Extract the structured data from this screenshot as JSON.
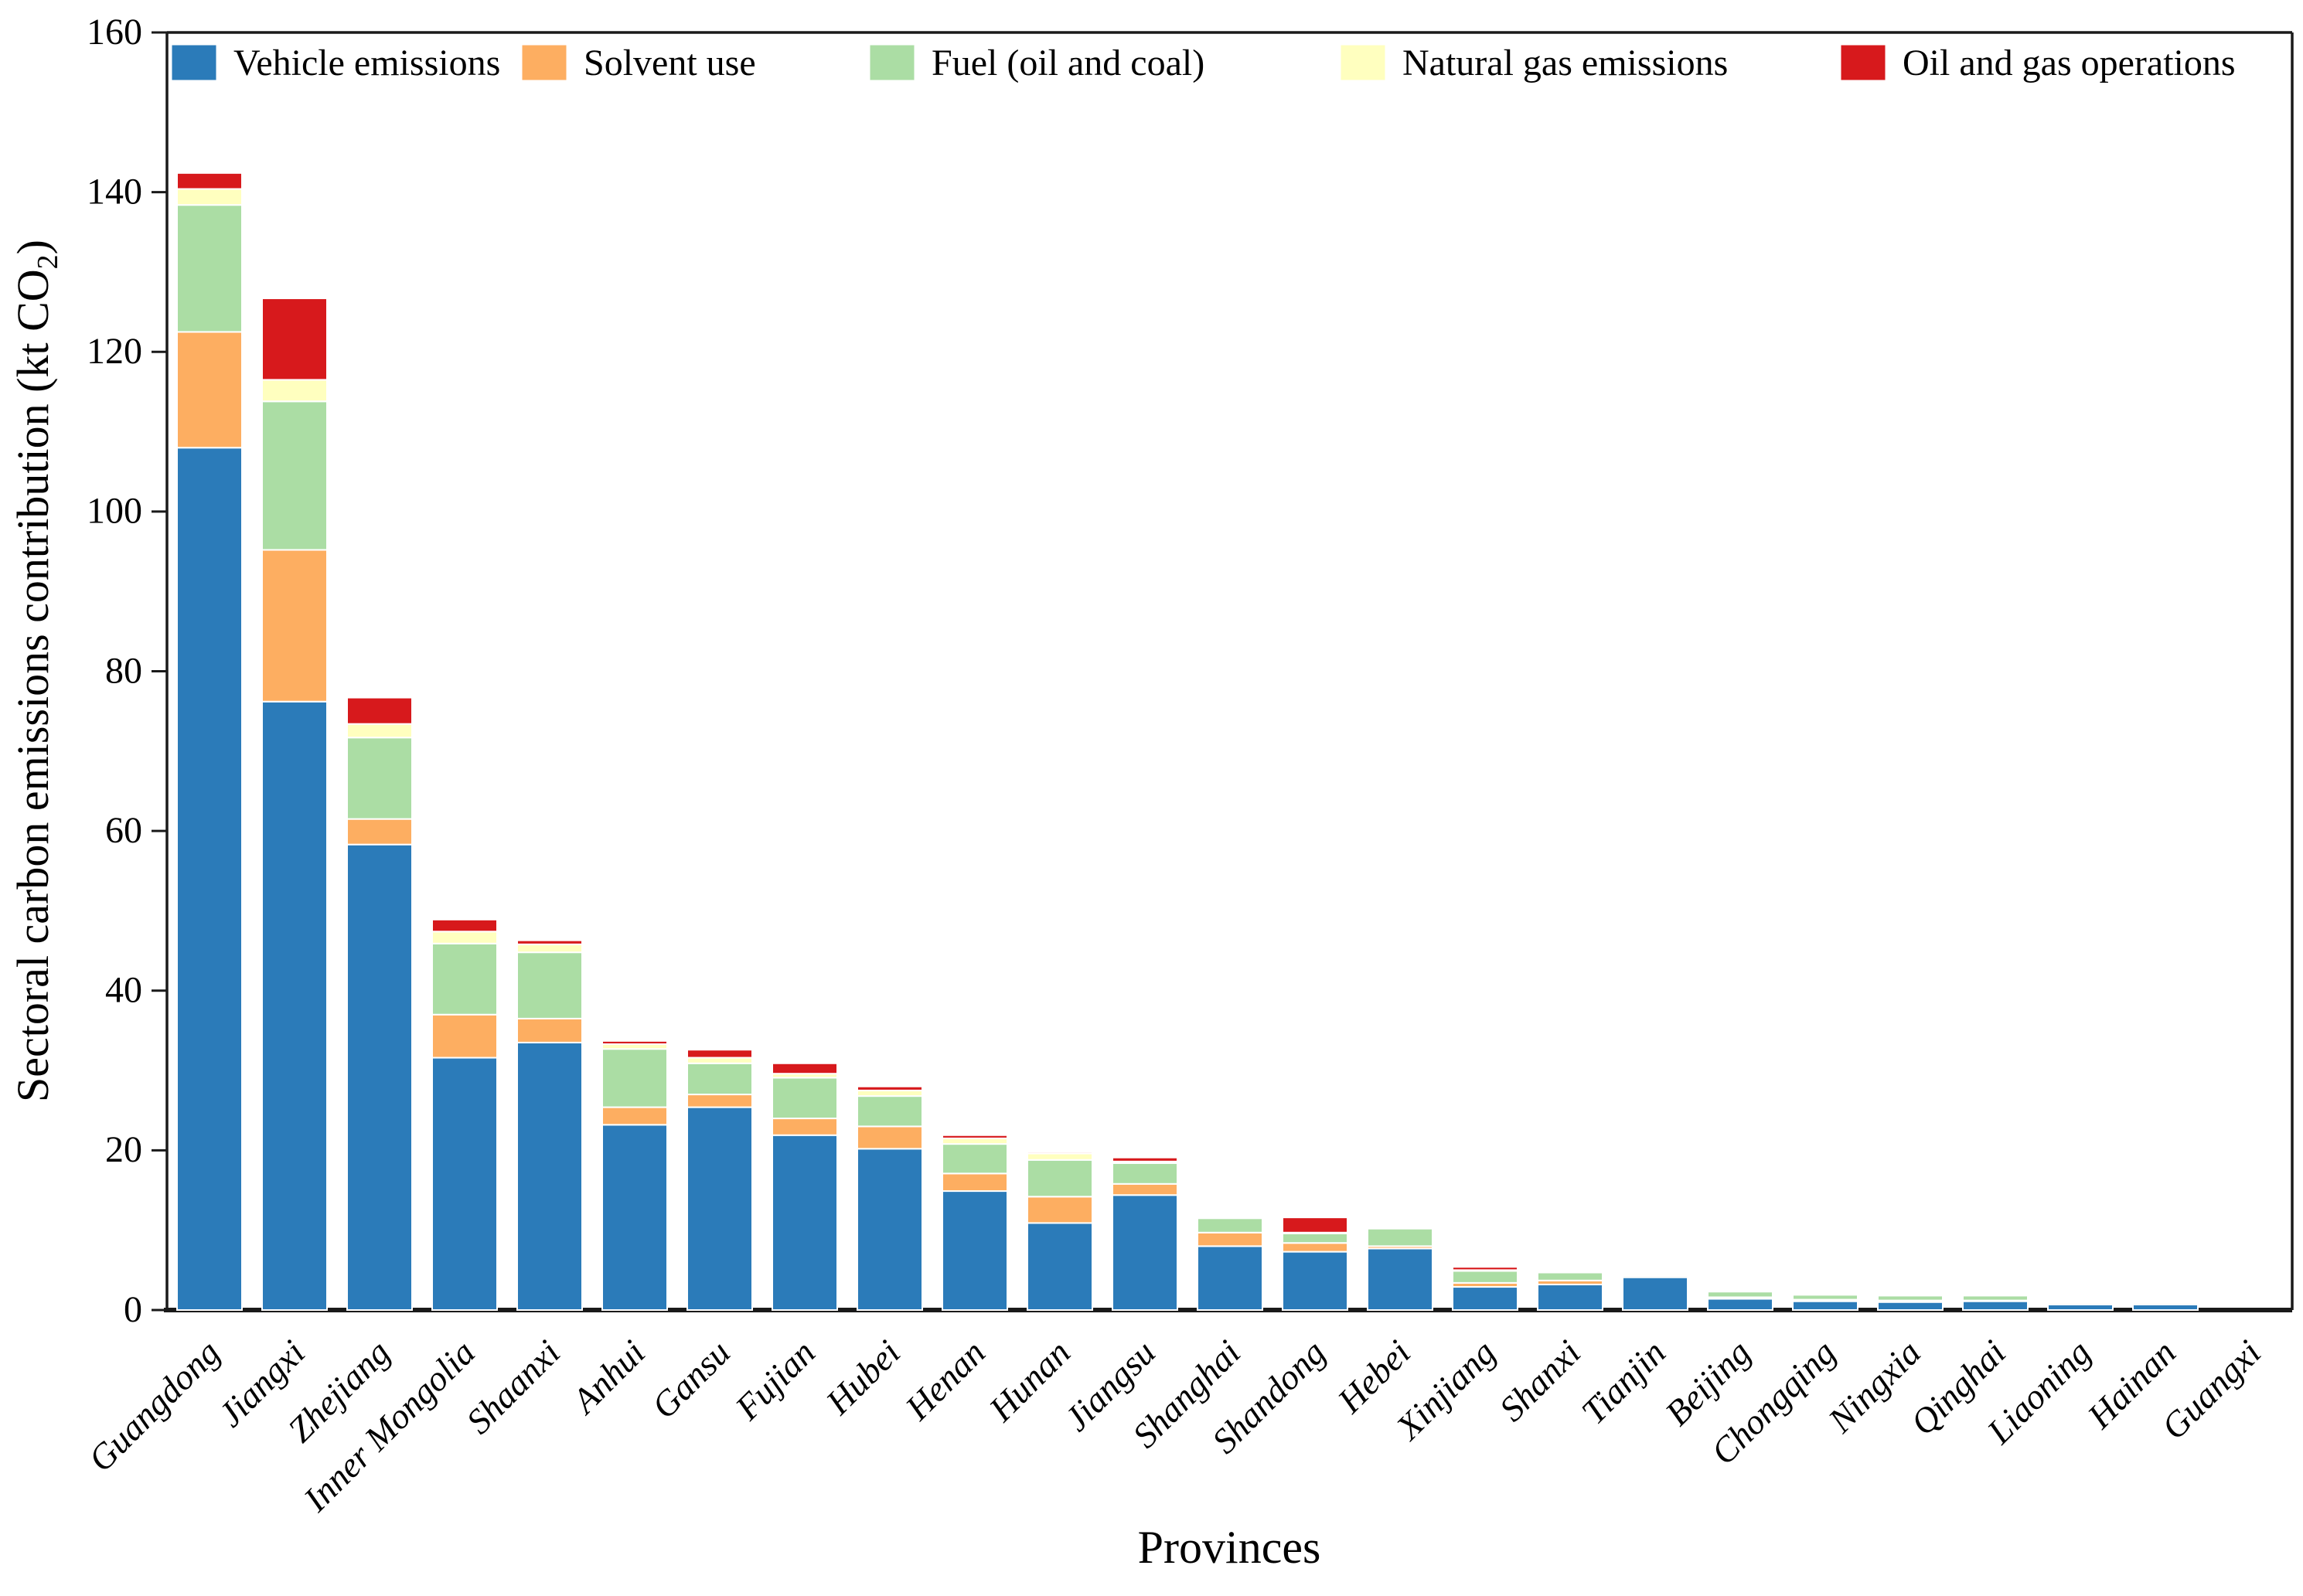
{
  "figure": {
    "x_axis_title": "Provinces",
    "y_axis_title_parts": {
      "main": "Sectoral carbon emissions contribution (kt CO",
      "sub": "2",
      "end": ")"
    }
  },
  "colors": {
    "vehicle_blue": "#2b7bb9",
    "solvent_orange": "#fdae61",
    "fuel_green": "#abdda4",
    "natural_gas_yellow": "#ffffbf",
    "oil_gas_red": "#d7191c",
    "axis_line": "#1a1a1a",
    "segment_edge": "#ffffff"
  },
  "chart_data": {
    "type": "bar",
    "stacked": true,
    "title": "",
    "xlabel": "Provinces",
    "ylabel": "Sectoral carbon emissions contribution (kt CO2)",
    "ylim": [
      0,
      160
    ],
    "yticks": [
      0,
      20,
      40,
      60,
      80,
      100,
      120,
      140,
      160
    ],
    "grid": false,
    "legend_position": "top-inside-row",
    "categories": [
      "Guangdong",
      "Jiangxi",
      "Zhejiang",
      "Inner Mongolia",
      "Shaanxi",
      "Anhui",
      "Gansu",
      "Fujian",
      "Hubei",
      "Henan",
      "Hunan",
      "Jiangsu",
      "Shanghai",
      "Shandong",
      "Hebei",
      "Xinjiang",
      "Shanxi",
      "Tianjin",
      "Beijing",
      "Chongqing",
      "Ningxia",
      "Qinghai",
      "Liaoning",
      "Hainan",
      "Guangxi"
    ],
    "series": [
      {
        "name": "Vehicle emissions",
        "color": "#2b7bb9",
        "values": [
          108.0,
          76.2,
          58.3,
          31.6,
          33.5,
          23.2,
          25.4,
          21.9,
          20.2,
          14.9,
          10.9,
          14.4,
          8.0,
          7.3,
          7.7,
          2.9,
          3.2,
          4.1,
          1.4,
          1.1,
          1.0,
          1.1,
          0.7,
          0.7,
          0
        ]
      },
      {
        "name": "Solvent use",
        "color": "#fdae61",
        "values": [
          14.5,
          19.0,
          3.2,
          5.4,
          3.0,
          2.2,
          1.6,
          2.1,
          2.8,
          2.2,
          3.3,
          1.4,
          1.7,
          1.1,
          0.3,
          0.5,
          0.5,
          0.2,
          0.2,
          0.2,
          0.2,
          0.1,
          0.2,
          0.2,
          0
        ]
      },
      {
        "name": "Fuel (oil and coal)",
        "color": "#abdda4",
        "values": [
          15.9,
          18.6,
          10.2,
          8.9,
          8.3,
          7.3,
          3.9,
          5.1,
          3.8,
          3.7,
          4.6,
          2.6,
          1.8,
          1.2,
          2.2,
          1.5,
          1.0,
          0.1,
          0.7,
          0.6,
          0.6,
          0.6,
          0.1,
          0.1,
          0
        ]
      },
      {
        "name": "Natural gas emissions",
        "color": "#ffffbf",
        "values": [
          2.0,
          2.7,
          1.7,
          1.5,
          1.0,
          0.6,
          0.7,
          0.5,
          0.7,
          0.7,
          0.8,
          0.2,
          0.1,
          0.1,
          0.1,
          0.1,
          0.1,
          0.2,
          0,
          0,
          0,
          0,
          0,
          0,
          0
        ]
      },
      {
        "name": "Oil and gas operations",
        "color": "#d7191c",
        "values": [
          2.0,
          10.2,
          3.3,
          1.5,
          0.5,
          0.4,
          1.0,
          1.3,
          0.5,
          0.4,
          0.2,
          0.5,
          0.1,
          1.9,
          0,
          0.4,
          0.1,
          0.1,
          0,
          0,
          0,
          0,
          0,
          0,
          0
        ]
      }
    ],
    "totals": [
      142.4,
      126.7,
      76.7,
      48.9,
      46.3,
      33.7,
      32.6,
      30.9,
      28.0,
      21.9,
      19.8,
      19.1,
      11.7,
      11.6,
      10.3,
      5.4,
      4.9,
      4.7,
      2.3,
      1.9,
      1.8,
      1.8,
      1.0,
      1.0,
      0
    ]
  }
}
